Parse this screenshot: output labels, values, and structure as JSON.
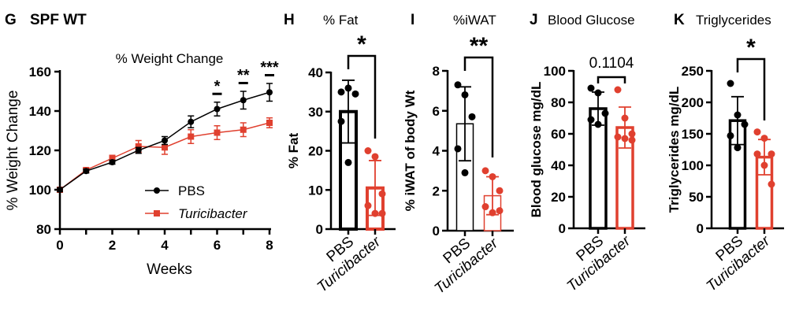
{
  "colors": {
    "pbs": "#000000",
    "turicibacter": "#e0402f"
  },
  "chart_data": [
    {
      "panel": "G",
      "heading": "SPF WT",
      "type": "line",
      "title": "% Weight Change",
      "xlabel": "Weeks",
      "ylabel": "% Weight Change",
      "xlim": [
        0,
        8
      ],
      "ylim": [
        80,
        160
      ],
      "xticks": [
        0,
        2,
        4,
        6,
        8
      ],
      "yticks": [
        80,
        100,
        120,
        140,
        160
      ],
      "x": [
        0,
        1,
        2,
        3,
        4,
        5,
        6,
        7,
        8
      ],
      "legend_position": "bottom-right",
      "series": [
        {
          "name": "PBS",
          "marker": "circle",
          "color": "#000000",
          "values": [
            100,
            109.5,
            114,
            120,
            125,
            134.5,
            141,
            145.5,
            149.5
          ],
          "errors": [
            1,
            1,
            1,
            1.5,
            2,
            3,
            3.5,
            4.5,
            4.5
          ]
        },
        {
          "name": "Turicibacter",
          "marker": "square",
          "color": "#e0402f",
          "values": [
            100,
            110,
            116,
            122,
            121.5,
            127,
            129,
            130.5,
            134
          ],
          "errors": [
            1,
            1,
            1.5,
            3,
            3.5,
            3.5,
            3.5,
            3.5,
            2.5
          ]
        }
      ],
      "annotations": [
        {
          "week": 6,
          "label": "*"
        },
        {
          "week": 7,
          "label": "**"
        },
        {
          "week": 8,
          "label": "***"
        }
      ]
    },
    {
      "panel": "H",
      "type": "bar",
      "title": "% Fat",
      "ylabel": "% Fat",
      "ylim": [
        0,
        40
      ],
      "yticks": [
        0,
        10,
        20,
        30,
        40
      ],
      "categories": [
        "PBS",
        "Turicibacter"
      ],
      "means": [
        30,
        10.5
      ],
      "sd": [
        8,
        7
      ],
      "points": [
        [
          35,
          36,
          34.5,
          27.5,
          17
        ],
        [
          20,
          18.5,
          9,
          6,
          4,
          4
        ]
      ],
      "significance": "*"
    },
    {
      "panel": "I",
      "type": "bar",
      "title": "%iWAT",
      "ylabel": "% iWAT of body Wt",
      "ylim": [
        0,
        8
      ],
      "yticks": [
        0,
        2,
        4,
        6,
        8
      ],
      "categories": [
        "PBS",
        "Turicibacter"
      ],
      "means": [
        5.35,
        1.75
      ],
      "sd": [
        1.85,
        0.95
      ],
      "points": [
        [
          7.3,
          6.8,
          5.7,
          4.1,
          2.9
        ],
        [
          3.0,
          2.7,
          2.0,
          1.2,
          0.9,
          1.0
        ]
      ],
      "significance": "**"
    },
    {
      "panel": "J",
      "type": "bar",
      "title": "Blood Glucose",
      "ylabel": "Blood glucose mg/dL",
      "ylim": [
        0,
        100
      ],
      "yticks": [
        0,
        20,
        40,
        60,
        80,
        100
      ],
      "categories": [
        "PBS",
        "Turicibacter"
      ],
      "means": [
        76,
        64
      ],
      "sd": [
        10.5,
        13
      ],
      "points": [
        [
          89,
          86,
          73,
          69,
          66
        ],
        [
          88,
          70,
          60,
          58,
          57,
          56
        ]
      ],
      "significance": "0.1104"
    },
    {
      "panel": "K",
      "type": "bar",
      "title": "Triglycerides",
      "ylabel": "Triglycerides mg/dL",
      "ylim": [
        0,
        250
      ],
      "yticks": [
        0,
        50,
        100,
        150,
        200,
        250
      ],
      "categories": [
        "PBS",
        "Turicibacter"
      ],
      "means": [
        171,
        113
      ],
      "sd": [
        38,
        28
      ],
      "points": [
        [
          230,
          180,
          165,
          147,
          128
        ],
        [
          153,
          143,
          118,
          118,
          100,
          70
        ]
      ],
      "significance": "*"
    }
  ]
}
